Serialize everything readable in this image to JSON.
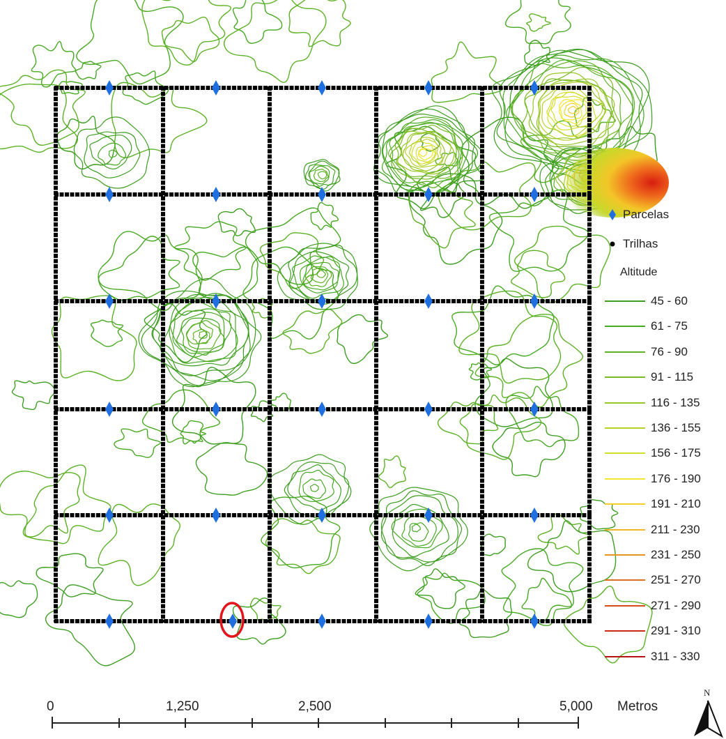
{
  "map": {
    "grid_cols": 5,
    "grid_rows": 5,
    "trail_color": "#000000",
    "plot_color": "#1f6fe0",
    "contour_base_color": "#3aa01e",
    "highlight_color": "#e3141b",
    "highlighted_plot": {
      "row": 5,
      "col": 1
    }
  },
  "legend": {
    "parcelas_label": "Parcelas",
    "trilhas_label": "Trilhas",
    "altitude_title": "Altitude",
    "classes": [
      {
        "label": "45 - 60",
        "color": "#3e9e21"
      },
      {
        "label": "61 - 75",
        "color": "#47a822"
      },
      {
        "label": "76 - 90",
        "color": "#5cb124"
      },
      {
        "label": "91 - 115",
        "color": "#78ba26"
      },
      {
        "label": "116 - 135",
        "color": "#97c628"
      },
      {
        "label": "136 - 155",
        "color": "#b6d22a"
      },
      {
        "label": "156 - 175",
        "color": "#d6de2c"
      },
      {
        "label": "176 - 190",
        "color": "#f1e62b"
      },
      {
        "label": "191 - 210",
        "color": "#f4cf28"
      },
      {
        "label": "211 - 230",
        "color": "#f1b424"
      },
      {
        "label": "231 - 250",
        "color": "#ea9520"
      },
      {
        "label": "251 - 270",
        "color": "#e2701b"
      },
      {
        "label": "271 - 290",
        "color": "#d84a17"
      },
      {
        "label": "291 - 310",
        "color": "#cc2a14"
      },
      {
        "label": "311 - 330",
        "color": "#b51512"
      }
    ]
  },
  "scalebar": {
    "ticks": [
      "0",
      "1,250",
      "2,500",
      "5,000"
    ],
    "unit": "Metros"
  },
  "north_arrow": {
    "label": "N"
  }
}
